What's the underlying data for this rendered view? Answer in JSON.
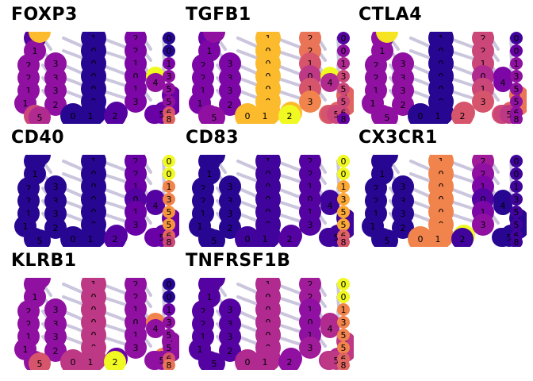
{
  "chart_data": {
    "type": "scatter",
    "colormap": "plasma",
    "edge_color": "#c2bcd8",
    "columns": [
      [
        "0",
        "1",
        "2",
        "2",
        "1",
        "1",
        "3"
      ],
      [
        "3",
        "3",
        "3",
        "2",
        "5",
        "7"
      ],
      [
        "1",
        "0",
        "0",
        "0",
        "0",
        "0",
        "0",
        "0",
        "1"
      ],
      [
        "2",
        "2",
        "1",
        "0",
        "1",
        "3",
        "4",
        "2"
      ],
      [
        "4",
        "4",
        "1",
        "1",
        "3",
        "3",
        "4",
        "5"
      ],
      [
        "0",
        "0",
        "1",
        "3",
        "5",
        "5",
        "6",
        "8"
      ]
    ],
    "panels": [
      {
        "gene": "FOXP3",
        "levels": [
          [
            0.15,
            0.3,
            0.3,
            0.3,
            0.3,
            0.3,
            0.5
          ],
          [
            0.3,
            0.3,
            0.3,
            0.3,
            0.4,
            0.85
          ],
          [
            0.05,
            0.05,
            0.05,
            0.05,
            0.05,
            0.05,
            0.05,
            0.05,
            0.05
          ],
          [
            0.25,
            0.25,
            0.25,
            0.25,
            0.25,
            0.25,
            0.15,
            0.15
          ],
          [
            1.0,
            0.3,
            0.2,
            0.2,
            0.2,
            0.2,
            0.2,
            0.2
          ],
          [
            0.05,
            0.05,
            0.25,
            0.3,
            0.3,
            0.3,
            0.55,
            0.6
          ]
        ]
      },
      {
        "gene": "TGFB1",
        "levels": [
          [
            0.2,
            0.25,
            0.25,
            0.25,
            0.25,
            0.25,
            0.3
          ],
          [
            0.25,
            0.25,
            0.25,
            0.25,
            0.3,
            0.3
          ],
          [
            0.85,
            0.85,
            0.85,
            0.85,
            0.85,
            0.85,
            0.85,
            0.85,
            0.85
          ],
          [
            0.65,
            0.65,
            0.55,
            0.45,
            0.55,
            0.7,
            0.85,
            1.0
          ],
          [
            1.0,
            0.4,
            0.6,
            0.6,
            0.6,
            0.6,
            0.55,
            0.5
          ],
          [
            0.15,
            0.3,
            0.4,
            0.5,
            0.5,
            0.5,
            0.5,
            0.2
          ]
        ]
      },
      {
        "gene": "CTLA4",
        "levels": [
          [
            0.3,
            0.3,
            0.3,
            0.3,
            0.3,
            0.3,
            0.3
          ],
          [
            0.3,
            0.3,
            0.3,
            0.3,
            0.3,
            0.95
          ],
          [
            0.05,
            0.05,
            0.05,
            0.05,
            0.05,
            0.05,
            0.05,
            0.05,
            0.05
          ],
          [
            0.5,
            0.5,
            0.5,
            0.4,
            0.5,
            0.55,
            0.55,
            0.55
          ],
          [
            0.25,
            0.25,
            0.65,
            0.65,
            0.6,
            0.55,
            0.5,
            0.45
          ],
          [
            0.1,
            0.2,
            0.3,
            0.3,
            0.3,
            0.3,
            0.3,
            0.3
          ]
        ]
      },
      {
        "gene": "CD40",
        "levels": [
          [
            0.05,
            0.05,
            0.05,
            0.05,
            0.05,
            0.05,
            0.05
          ],
          [
            0.05,
            0.05,
            0.05,
            0.05,
            0.05,
            0.05
          ],
          [
            0.05,
            0.05,
            0.05,
            0.05,
            0.05,
            0.05,
            0.05,
            0.05,
            0.05
          ],
          [
            0.2,
            0.2,
            0.2,
            0.15,
            0.2,
            0.2,
            0.15,
            0.15
          ],
          [
            0.15,
            0.15,
            0.2,
            0.2,
            0.15,
            0.2,
            0.2,
            0.2
          ],
          [
            1.0,
            1.0,
            0.7,
            0.7,
            0.75,
            0.75,
            0.6,
            0.5
          ]
        ]
      },
      {
        "gene": "CD83",
        "levels": [
          [
            0.05,
            0.05,
            0.05,
            0.05,
            0.05,
            0.05,
            0.05
          ],
          [
            0.05,
            0.05,
            0.05,
            0.05,
            0.05,
            0.05
          ],
          [
            0.1,
            0.1,
            0.1,
            0.1,
            0.1,
            0.1,
            0.1,
            0.1,
            0.1
          ],
          [
            0.15,
            0.15,
            0.15,
            0.15,
            0.15,
            0.15,
            0.15,
            0.15
          ],
          [
            0.1,
            0.1,
            0.1,
            0.1,
            0.1,
            0.1,
            0.1,
            0.1
          ],
          [
            1.0,
            1.0,
            0.8,
            0.8,
            0.8,
            0.8,
            0.6,
            0.55
          ]
        ]
      },
      {
        "gene": "CX3CR1",
        "levels": [
          [
            0.05,
            0.05,
            0.05,
            0.05,
            0.05,
            0.05,
            0.05
          ],
          [
            0.05,
            0.05,
            0.05,
            0.05,
            0.05,
            0.05
          ],
          [
            0.7,
            0.7,
            0.7,
            0.7,
            0.7,
            0.7,
            0.7,
            0.7,
            0.7
          ],
          [
            0.35,
            0.3,
            0.25,
            0.15,
            0.25,
            0.3,
            1.0,
            0.1
          ],
          [
            0.05,
            0.05,
            0.05,
            0.05,
            0.05,
            0.05,
            0.05,
            0.05
          ],
          [
            0.1,
            0.1,
            0.1,
            0.1,
            0.1,
            0.1,
            0.1,
            0.1
          ]
        ]
      },
      {
        "gene": "KLRB1",
        "levels": [
          [
            0.3,
            0.3,
            0.3,
            0.3,
            0.3,
            0.3,
            0.3
          ],
          [
            0.3,
            0.3,
            0.3,
            0.3,
            0.55,
            0.3
          ],
          [
            0.45,
            0.45,
            0.45,
            0.45,
            0.45,
            0.45,
            0.45,
            0.45,
            0.45
          ],
          [
            0.3,
            0.3,
            0.3,
            0.3,
            0.3,
            0.3,
            0.2,
            1.0
          ],
          [
            0.7,
            0.3,
            0.3,
            0.3,
            0.7,
            0.3,
            0.3,
            0.3
          ],
          [
            0.05,
            0.05,
            0.2,
            0.3,
            0.3,
            0.3,
            0.55,
            0.65
          ]
        ]
      },
      {
        "gene": "TNFRSF1B",
        "levels": [
          [
            0.15,
            0.15,
            0.15,
            0.15,
            0.15,
            0.15,
            0.15
          ],
          [
            0.15,
            0.15,
            0.15,
            0.15,
            0.15,
            0.15
          ],
          [
            0.4,
            0.4,
            0.4,
            0.4,
            0.4,
            0.4,
            0.4,
            0.4,
            0.4
          ],
          [
            0.35,
            0.35,
            0.3,
            0.3,
            0.3,
            0.35,
            0.3,
            0.3
          ],
          [
            0.4,
            0.4,
            0.45,
            0.45,
            0.4,
            0.4,
            0.45,
            0.45
          ],
          [
            1.0,
            1.0,
            0.7,
            0.7,
            0.7,
            0.7,
            0.6,
            0.6
          ]
        ]
      }
    ]
  }
}
